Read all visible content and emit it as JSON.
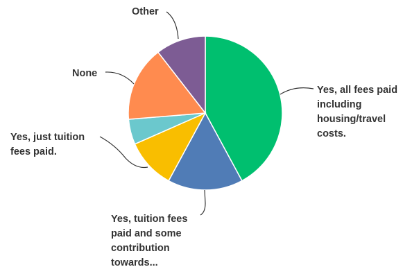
{
  "chart_data": {
    "type": "pie",
    "title": "",
    "slices": [
      {
        "label": [
          "Yes, all fees paid",
          "including",
          "housing/travel",
          "costs."
        ],
        "value": 42.1,
        "color": "#00bf6f"
      },
      {
        "label": [
          "Yes, tuition fees",
          "paid and some",
          "contribution",
          "towards..."
        ],
        "value": 15.8,
        "color": "#507cb6"
      },
      {
        "label": [
          "Yes, just tuition",
          "fees paid."
        ],
        "value": 10.5,
        "color": "#f9be00"
      },
      {
        "label": [
          "None"
        ],
        "value": 5.3,
        "color": "#6bc8cd"
      },
      {
        "label": [
          "Other"
        ],
        "value": 15.8,
        "color": "#ff8b4f"
      },
      {
        "label": [],
        "value": 10.5,
        "color": "#7d5c94"
      }
    ]
  }
}
